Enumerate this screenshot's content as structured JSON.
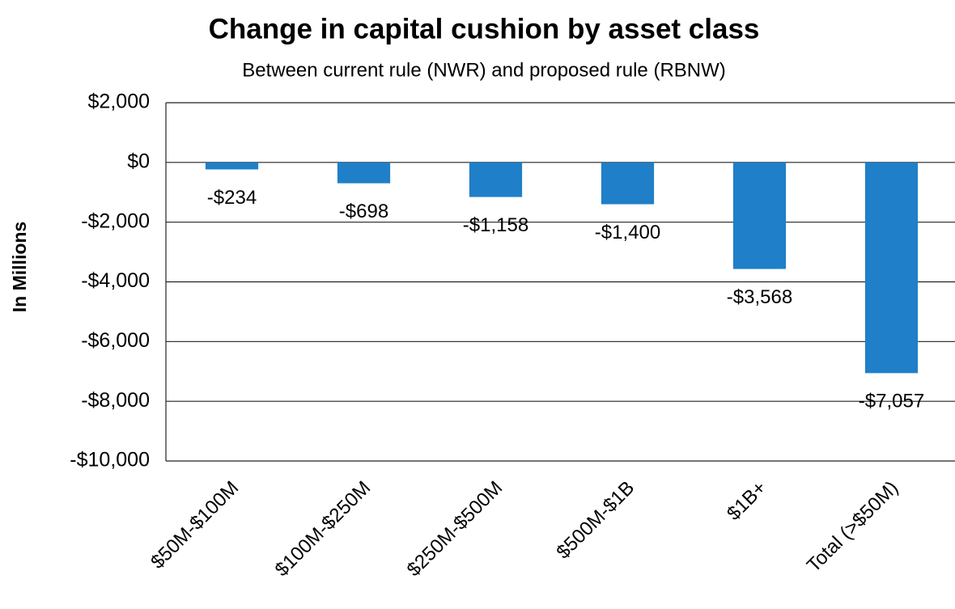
{
  "chart_data": {
    "type": "bar",
    "title": "Change in capital cushion by asset class",
    "subtitle": "Between current rule (NWR) and proposed rule (RBNW)",
    "y_label": "In Millions",
    "categories": [
      "$50M-$100M",
      "$100M-$250M",
      "$250M-$500M",
      "$500M-$1B",
      "$1B+",
      "Total (>$50M)"
    ],
    "values": [
      -234,
      -698,
      -1158,
      -1400,
      -3568,
      -7057
    ],
    "value_labels": [
      "-$234",
      "-$698",
      "-$1,158",
      "-$1,400",
      "-$3,568",
      "-$7,057"
    ],
    "color": "#1f7fc8",
    "ylim": [
      -10000,
      2000
    ],
    "yticks": [
      {
        "value": 2000,
        "label": "$2,000"
      },
      {
        "value": 0,
        "label": "$0"
      },
      {
        "value": -2000,
        "label": "-$2,000"
      },
      {
        "value": -4000,
        "label": "-$4,000"
      },
      {
        "value": -6000,
        "label": "-$6,000"
      },
      {
        "value": -8000,
        "label": "-$8,000"
      },
      {
        "value": -10000,
        "label": "-$10,000"
      }
    ],
    "grid": true
  }
}
